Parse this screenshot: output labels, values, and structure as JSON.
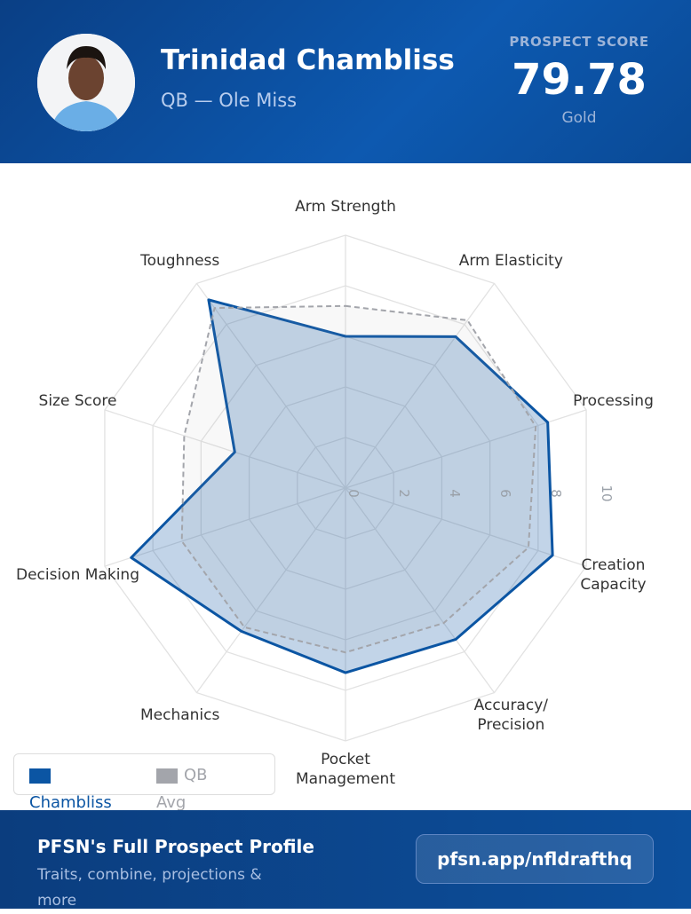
{
  "header": {
    "name": "Trinidad Chambliss",
    "subtitle": "QB — Ole Miss",
    "score_label": "PROSPECT SCORE",
    "score": "79.78",
    "tier": "Gold"
  },
  "chart_data": {
    "type": "radar",
    "categories": [
      "Arm Strength",
      "Arm Elasticity",
      "Processing",
      "Creation Capacity",
      "Accuracy/Precision",
      "Pocket Management",
      "Mechanics",
      "Decision Making",
      "Size Score",
      "Toughness"
    ],
    "series": [
      {
        "name": "Chambliss",
        "color": "#0b55a3",
        "values": [
          6.0,
          7.4,
          8.4,
          8.6,
          7.4,
          7.3,
          7.0,
          8.9,
          4.6,
          9.2
        ]
      },
      {
        "name": "QB Avg",
        "color": "#a3a5ab",
        "values": [
          7.2,
          8.2,
          7.9,
          7.6,
          6.6,
          6.5,
          6.8,
          6.8,
          6.7,
          8.8
        ]
      }
    ],
    "rlim": [
      0,
      10
    ],
    "rticks": [
      0,
      2,
      4,
      6,
      8,
      10
    ],
    "grid": true
  },
  "footer": {
    "title": "PFSN's Full Prospect Profile",
    "text": "Traits, combine, projections & more",
    "button": "pfsn.app/nfldrafthq"
  }
}
